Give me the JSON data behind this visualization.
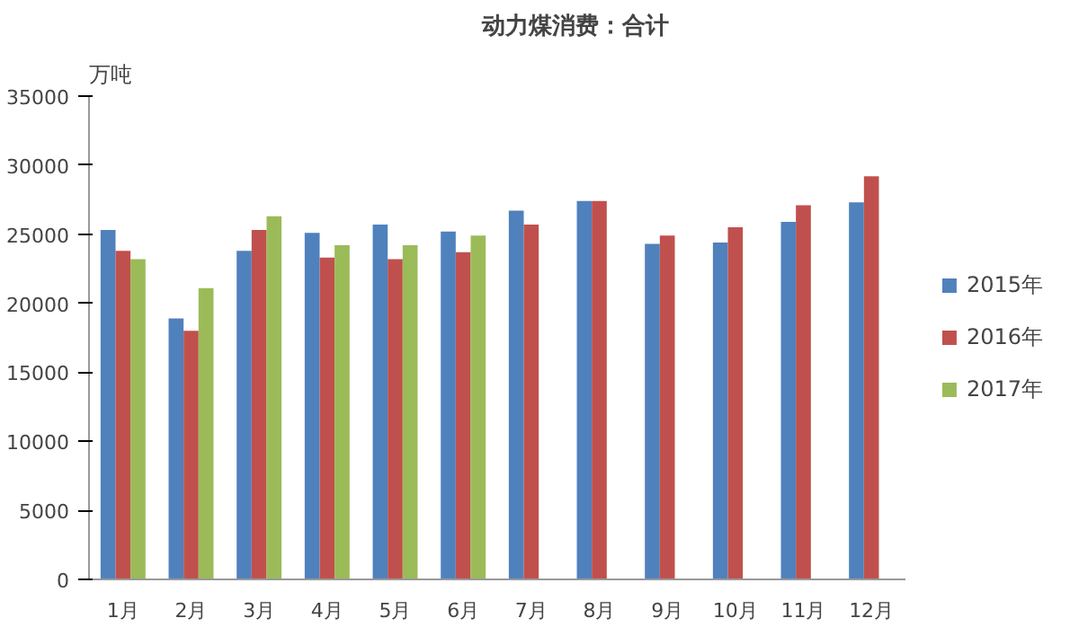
{
  "chart_data": {
    "type": "bar",
    "title": "动力煤消费：合计",
    "ylabel": "万吨",
    "categories": [
      "1月",
      "2月",
      "3月",
      "4月",
      "5月",
      "6月",
      "7月",
      "8月",
      "9月",
      "10月",
      "11月",
      "12月"
    ],
    "series": [
      {
        "name": "2015年",
        "color": "#4f81bd",
        "values": [
          25300,
          18900,
          23800,
          25100,
          25700,
          25200,
          26700,
          27400,
          24300,
          24400,
          25900,
          27300
        ]
      },
      {
        "name": "2016年",
        "color": "#c0504d",
        "values": [
          23800,
          18000,
          25300,
          23300,
          23200,
          23700,
          25700,
          27400,
          24900,
          25500,
          27100,
          29200
        ]
      },
      {
        "name": "2017年",
        "color": "#9bbb59",
        "values": [
          23200,
          21100,
          26300,
          24200,
          24200,
          24900,
          null,
          null,
          null,
          null,
          null,
          null
        ]
      }
    ],
    "ylim": [
      0,
      35000
    ],
    "yticks": [
      0,
      5000,
      10000,
      15000,
      20000,
      25000,
      30000,
      35000
    ],
    "grid": false,
    "legend": "right"
  }
}
